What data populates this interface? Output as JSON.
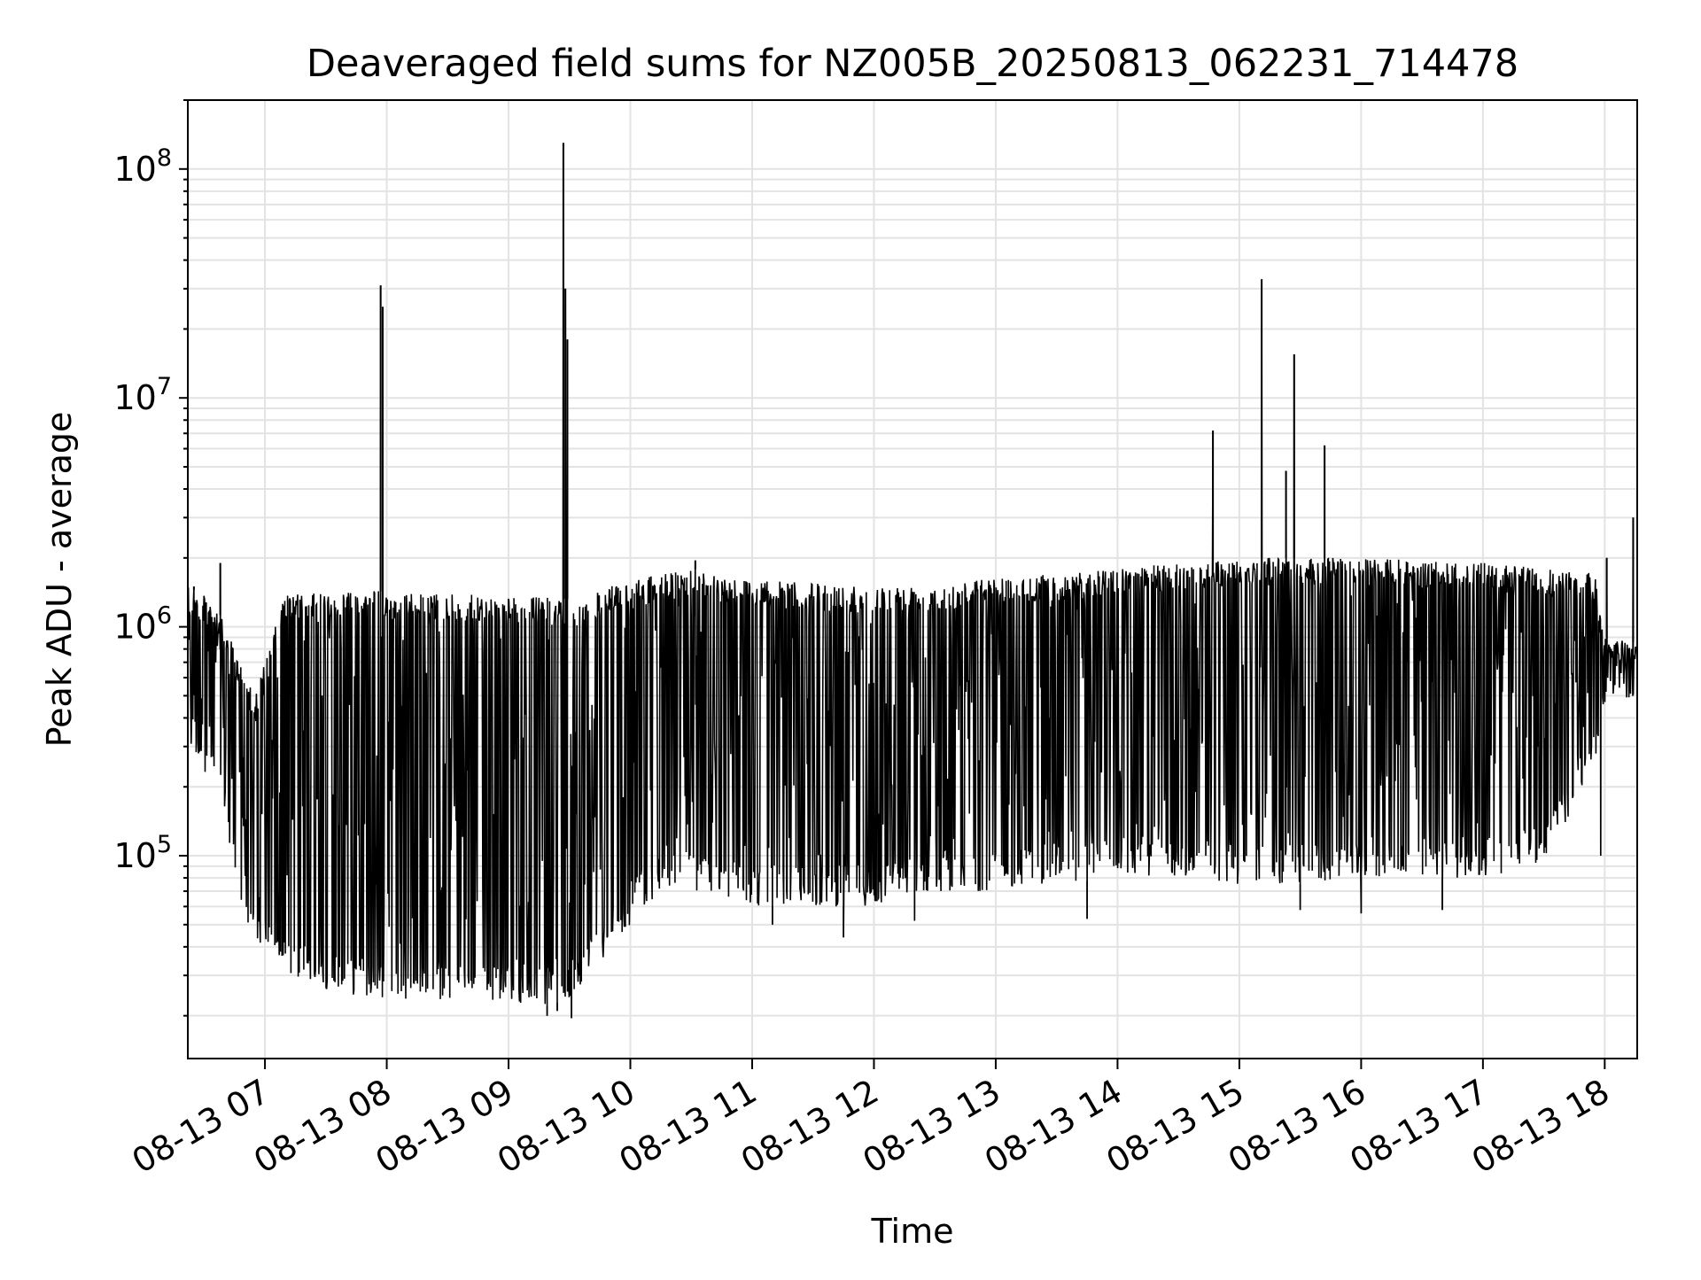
{
  "chart_data": {
    "type": "line",
    "title": "Deaveraged field sums for NZ005B_20250813_062231_714478",
    "xlabel": "Time",
    "ylabel": "Peak ADU - average",
    "x_axis": {
      "kind": "time",
      "start": "2025-08-13 06:22",
      "end": "2025-08-13 18:16",
      "tick_labels": [
        "08-13 07",
        "08-13 08",
        "08-13 09",
        "08-13 10",
        "08-13 11",
        "08-13 12",
        "08-13 13",
        "08-13 14",
        "08-13 15",
        "08-13 16",
        "08-13 17",
        "08-13 18"
      ],
      "tick_rotation_deg": 30
    },
    "y_axis": {
      "scale": "log",
      "ylim": [
        13000,
        200000000
      ],
      "tick_labels": [
        {
          "base": "10",
          "exp": "5"
        },
        {
          "base": "10",
          "exp": "6"
        },
        {
          "base": "10",
          "exp": "7"
        },
        {
          "base": "10",
          "exp": "8"
        }
      ]
    },
    "grid": true,
    "legend": "none",
    "line_color": "#000000",
    "series": [
      {
        "envelope": [
          {
            "t": "06:22",
            "low": 300000,
            "high": 1500000
          },
          {
            "t": "06:35",
            "low": 200000,
            "high": 1300000
          },
          {
            "t": "06:45",
            "low": 80000,
            "high": 800000
          },
          {
            "t": "06:55",
            "low": 40000,
            "high": 500000
          },
          {
            "t": "07:10",
            "low": 30000,
            "high": 1400000
          },
          {
            "t": "07:30",
            "low": 26000,
            "high": 1400000
          },
          {
            "t": "07:50",
            "low": 24000,
            "high": 1500000
          },
          {
            "t": "08:00",
            "low": 24000,
            "high": 1400000
          },
          {
            "t": "08:30",
            "low": 23000,
            "high": 1400000
          },
          {
            "t": "09:00",
            "low": 23000,
            "high": 1350000
          },
          {
            "t": "09:20",
            "low": 22000,
            "high": 1350000
          },
          {
            "t": "09:35",
            "low": 25000,
            "high": 1300000
          },
          {
            "t": "09:50",
            "low": 40000,
            "high": 1500000
          },
          {
            "t": "10:15",
            "low": 70000,
            "high": 1700000
          },
          {
            "t": "10:30",
            "low": 70000,
            "high": 1800000
          },
          {
            "t": "11:00",
            "low": 60000,
            "high": 1600000
          },
          {
            "t": "11:30",
            "low": 60000,
            "high": 1550000
          },
          {
            "t": "12:00",
            "low": 60000,
            "high": 1500000
          },
          {
            "t": "12:30",
            "low": 70000,
            "high": 1550000
          },
          {
            "t": "13:00",
            "low": 70000,
            "high": 1650000
          },
          {
            "t": "13:30",
            "low": 75000,
            "high": 1700000
          },
          {
            "t": "14:00",
            "low": 80000,
            "high": 1800000
          },
          {
            "t": "14:30",
            "low": 80000,
            "high": 1900000
          },
          {
            "t": "15:00",
            "low": 75000,
            "high": 2000000
          },
          {
            "t": "15:30",
            "low": 75000,
            "high": 2000000
          },
          {
            "t": "16:00",
            "low": 80000,
            "high": 2000000
          },
          {
            "t": "16:30",
            "low": 80000,
            "high": 1950000
          },
          {
            "t": "17:00",
            "low": 80000,
            "high": 1900000
          },
          {
            "t": "17:30",
            "low": 90000,
            "high": 1800000
          },
          {
            "t": "17:55",
            "low": 250000,
            "high": 1700000
          },
          {
            "t": "18:00",
            "low": 450000,
            "high": 900000
          },
          {
            "t": "18:16",
            "low": 500000,
            "high": 850000
          }
        ],
        "spikes": [
          {
            "t": "06:25",
            "value": 1500000
          },
          {
            "t": "06:38",
            "value": 1900000
          },
          {
            "t": "07:57",
            "value": 31000000
          },
          {
            "t": "07:58",
            "value": 25000000
          },
          {
            "t": "09:27",
            "value": 130000000
          },
          {
            "t": "09:28",
            "value": 30000000
          },
          {
            "t": "09:29",
            "value": 18000000
          },
          {
            "t": "10:32",
            "value": 1950000
          },
          {
            "t": "14:47",
            "value": 7200000
          },
          {
            "t": "15:11",
            "value": 33000000
          },
          {
            "t": "15:23",
            "value": 4800000
          },
          {
            "t": "15:27",
            "value": 15500000
          },
          {
            "t": "15:42",
            "value": 6200000
          },
          {
            "t": "18:01",
            "value": 2000000
          },
          {
            "t": "18:14",
            "value": 3000000
          }
        ],
        "dips": [
          {
            "t": "09:19",
            "value": 20000
          },
          {
            "t": "09:24",
            "value": 21000
          },
          {
            "t": "09:31",
            "value": 19500
          },
          {
            "t": "11:10",
            "value": 50000
          },
          {
            "t": "11:45",
            "value": 44000
          },
          {
            "t": "12:20",
            "value": 52000
          },
          {
            "t": "13:45",
            "value": 53000
          },
          {
            "t": "15:30",
            "value": 58000
          },
          {
            "t": "16:00",
            "value": 56000
          },
          {
            "t": "16:40",
            "value": 58000
          },
          {
            "t": "17:58",
            "value": 100000
          }
        ]
      }
    ]
  }
}
